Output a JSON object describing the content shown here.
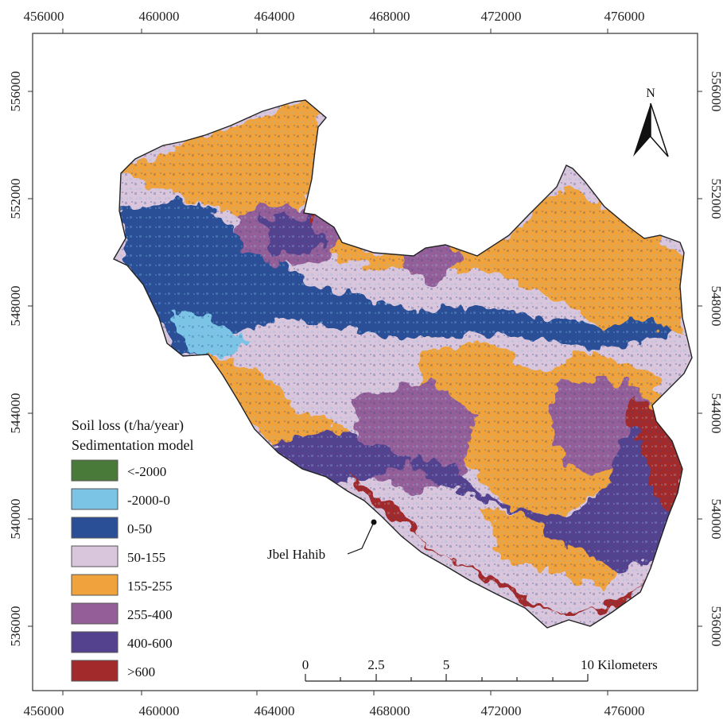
{
  "map": {
    "x_ticks": [
      "456000",
      "460000",
      "464000",
      "468000",
      "472000",
      "476000"
    ],
    "y_ticks": [
      "556000",
      "552000",
      "548000",
      "544000",
      "540000",
      "536000"
    ],
    "north_label": "N",
    "place_label": "Jbel Hahib",
    "scale_bar": {
      "labels": [
        "0",
        "2.5",
        "5",
        "10 Kilometers"
      ],
      "values_km": [
        0,
        2.5,
        5,
        10
      ]
    },
    "colors": {
      "lt_neg2000": "#4a7a3a",
      "neg2000_0": "#7cc4e6",
      "r0_50": "#2a4f96",
      "r50_155": "#d9c5dc",
      "r155_255": "#f0a23c",
      "r255_400": "#945e98",
      "r400_600": "#54428e",
      "gt600": "#a32a2a"
    }
  },
  "legend": {
    "title_line1": "Soil loss (t/ha/year)",
    "title_line2": "Sedimentation model",
    "items": [
      {
        "label": "<-2000",
        "color": "#4a7a3a"
      },
      {
        "label": "-2000-0",
        "color": "#7cc4e6"
      },
      {
        "label": "0-50",
        "color": "#2a4f96"
      },
      {
        "label": "50-155",
        "color": "#d9c5dc"
      },
      {
        "label": "155-255",
        "color": "#f0a23c"
      },
      {
        "label": "255-400",
        "color": "#945e98"
      },
      {
        "label": "400-600",
        "color": "#54428e"
      },
      {
        "label": ">600",
        "color": "#a32a2a"
      }
    ]
  }
}
